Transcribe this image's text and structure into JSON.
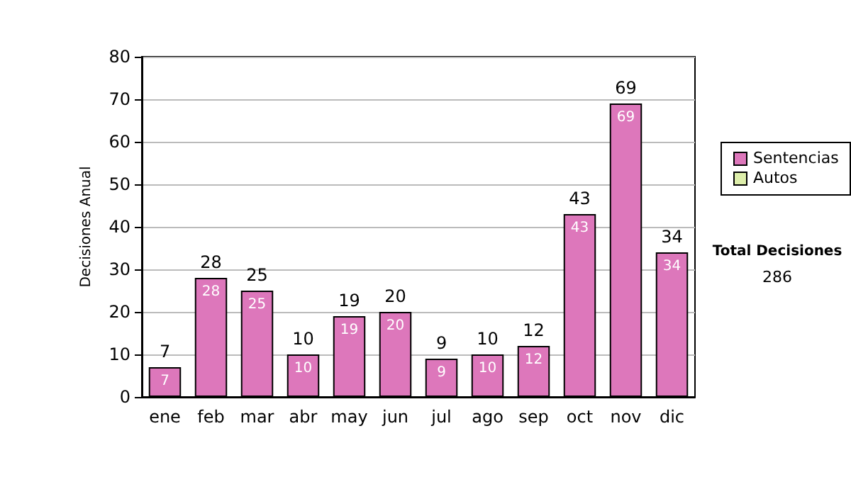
{
  "chart_data": {
    "type": "bar",
    "stacked": true,
    "ylabel": "Decisiones Anual",
    "categories": [
      "ene",
      "feb",
      "mar",
      "abr",
      "may",
      "jun",
      "jul",
      "ago",
      "sep",
      "oct",
      "nov",
      "dic"
    ],
    "series": [
      {
        "name": "Sentencias",
        "color": "#dd77bb",
        "values": [
          7,
          28,
          25,
          10,
          19,
          20,
          9,
          10,
          12,
          43,
          69,
          34
        ],
        "value_labels": [
          "7",
          "28",
          "25",
          "10",
          "19",
          "20",
          "9",
          "10",
          "12",
          "43",
          "69",
          "34"
        ]
      },
      {
        "name": "Autos",
        "color": "#ddeeaa",
        "values": [
          0,
          0,
          0,
          0,
          0,
          0,
          0,
          0,
          0,
          0,
          0,
          0
        ]
      }
    ],
    "totals": [
      "7",
      "28",
      "25",
      "10",
      "19",
      "20",
      "9",
      "10",
      "12",
      "43",
      "69",
      "34"
    ],
    "ylim": [
      0,
      80
    ],
    "yticks": [
      0,
      10,
      20,
      30,
      40,
      50,
      60,
      70,
      80
    ],
    "grid": "y",
    "legend": "right",
    "annotations": [
      "Total Decisiones",
      "286"
    ]
  }
}
